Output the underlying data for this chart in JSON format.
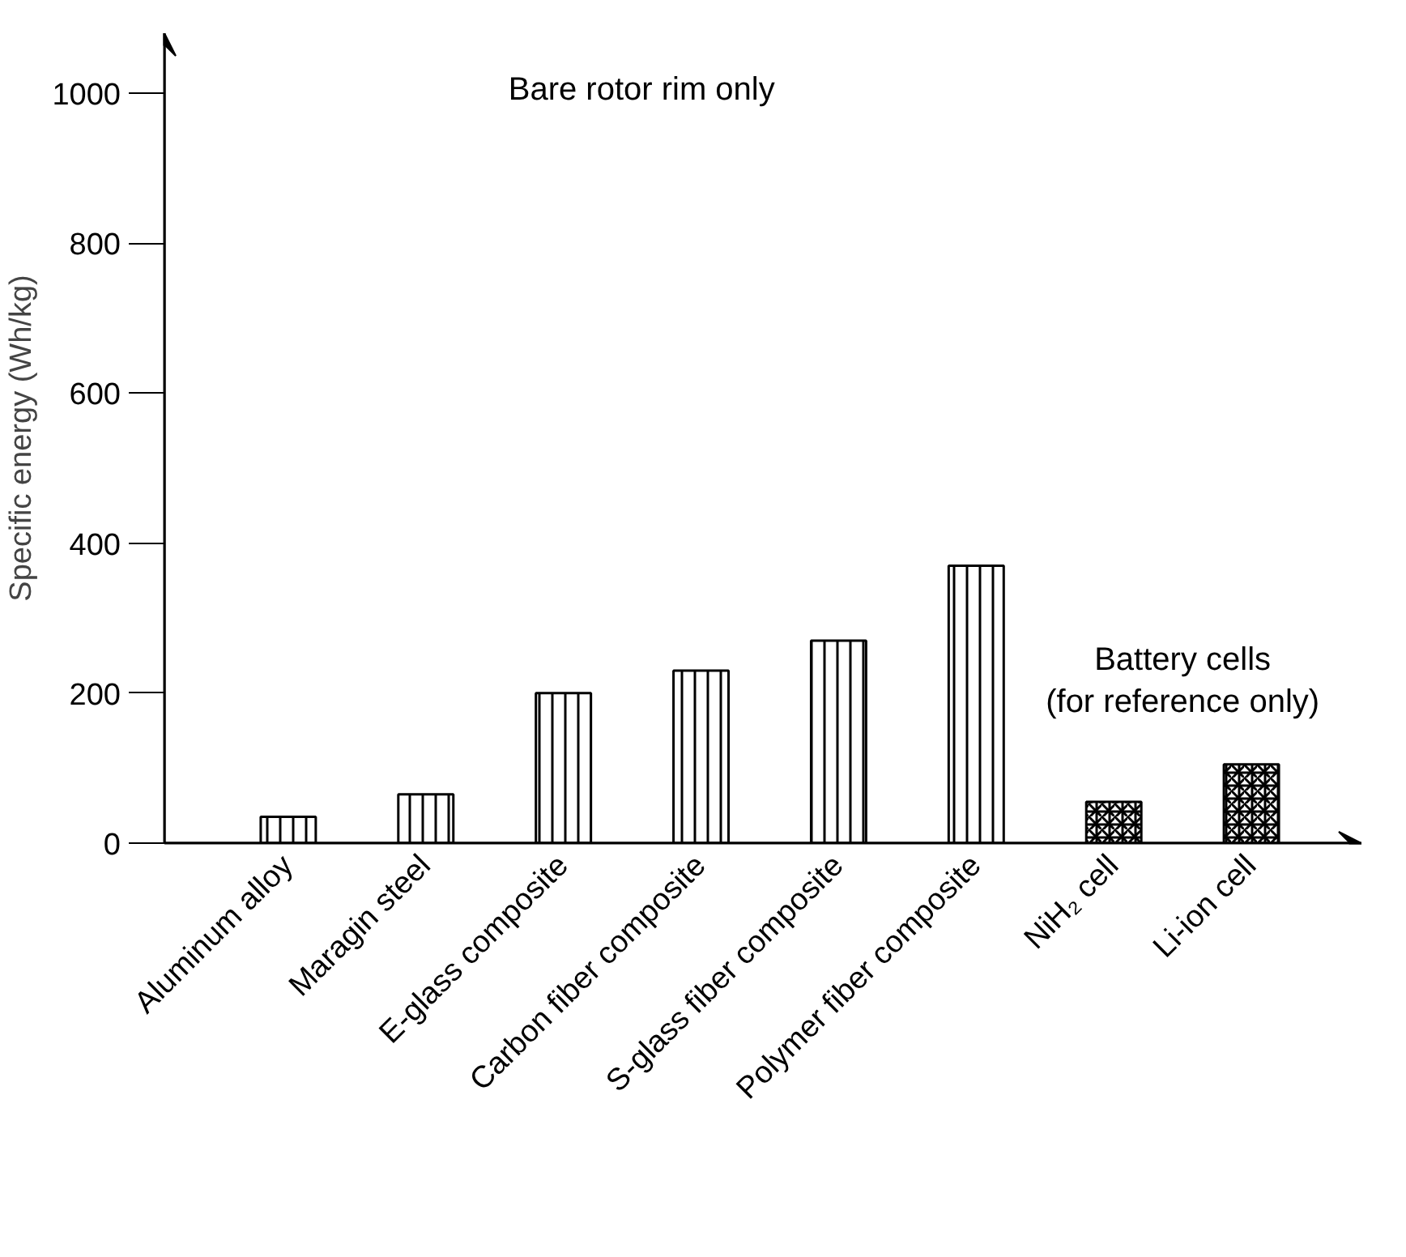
{
  "chart_data": {
    "type": "bar",
    "ylabel": "Specific energy (Wh/kg)",
    "categories": [
      "Aluminum alloy",
      "Maragin steel",
      "E-glass composite",
      "Carbon fiber composite",
      "S-glass fiber composite",
      "Polymer fiber composite",
      "NiH₂ cell",
      "Li-ion cell"
    ],
    "series": [
      {
        "color": "#ffffff",
        "values": [
          35,
          65,
          200,
          230,
          270,
          370,
          null,
          null
        ]
      },
      {
        "color": "#ffffff",
        "values": [
          null,
          null,
          null,
          null,
          null,
          null,
          55,
          105
        ]
      }
    ],
    "ylim": [
      0,
      1080
    ],
    "yticks": [
      0,
      200,
      400,
      600,
      800,
      1000
    ],
    "grid": false,
    "annotations": [
      "Bare rotor rim only",
      "Battery cells\n(for reference only)"
    ]
  }
}
